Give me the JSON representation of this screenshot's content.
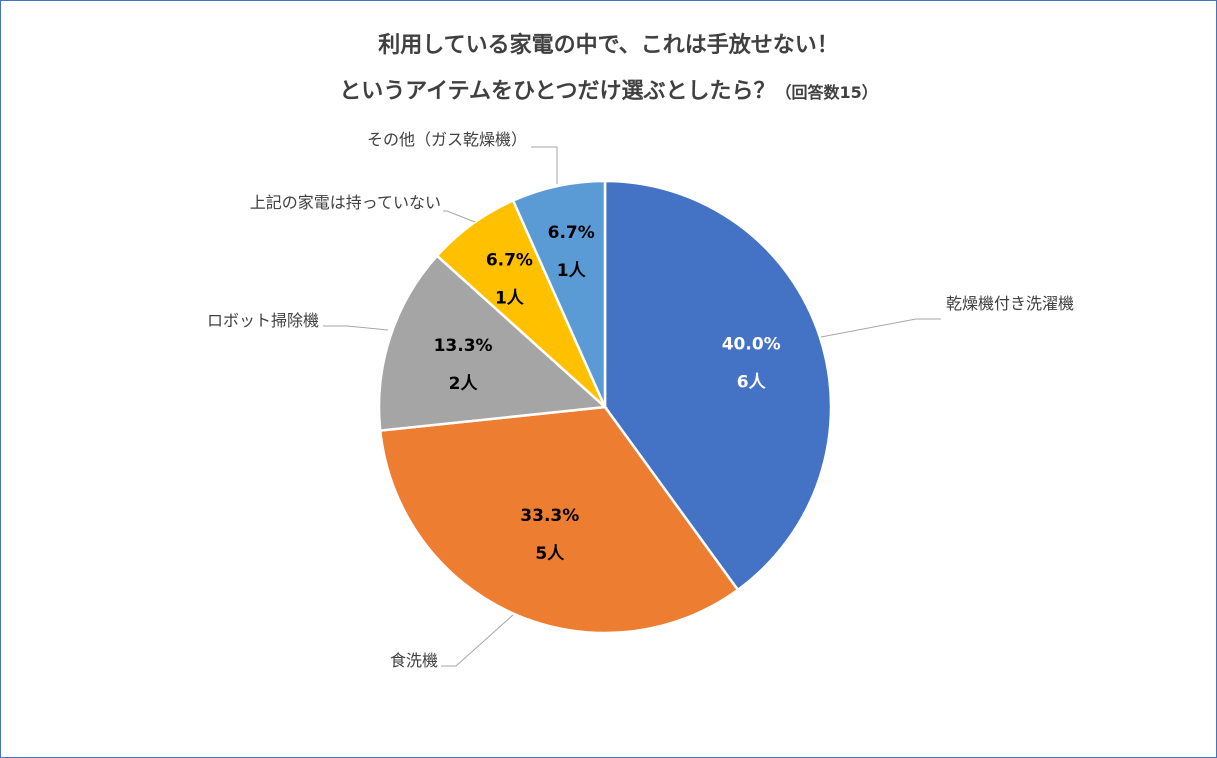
{
  "title": {
    "line1": "利用している家電の中で、これは手放せない！",
    "line2_main": "というアイテムをひとつだけ選ぶとしたら？",
    "line2_sub": "（回答数15）"
  },
  "chart_data": {
    "type": "pie",
    "title": "利用している家電の中で、これは手放せない！というアイテムをひとつだけ選ぶとしたら？（回答数15）",
    "unit": "人",
    "slices": [
      {
        "label": "乾燥機付き洗濯機",
        "value": 6,
        "percent": "40.0%",
        "count_label": "6人",
        "color": "#4472C4",
        "label_color": "#ffffff"
      },
      {
        "label": "食洗機",
        "value": 5,
        "percent": "33.3%",
        "count_label": "5人",
        "color": "#ED7D31",
        "label_color": "#000000"
      },
      {
        "label": "ロボット掃除機",
        "value": 2,
        "percent": "13.3%",
        "count_label": "2人",
        "color": "#A5A5A5",
        "label_color": "#000000"
      },
      {
        "label": "上記の家電は持っていない",
        "value": 1,
        "percent": "6.7%",
        "count_label": "1人",
        "color": "#FFC000",
        "label_color": "#000000"
      },
      {
        "label": "その他（ガス乾燥機）",
        "value": 1,
        "percent": "6.7%",
        "count_label": "1人",
        "color": "#5B9BD5",
        "label_color": "#000000"
      }
    ],
    "legend": "none"
  }
}
